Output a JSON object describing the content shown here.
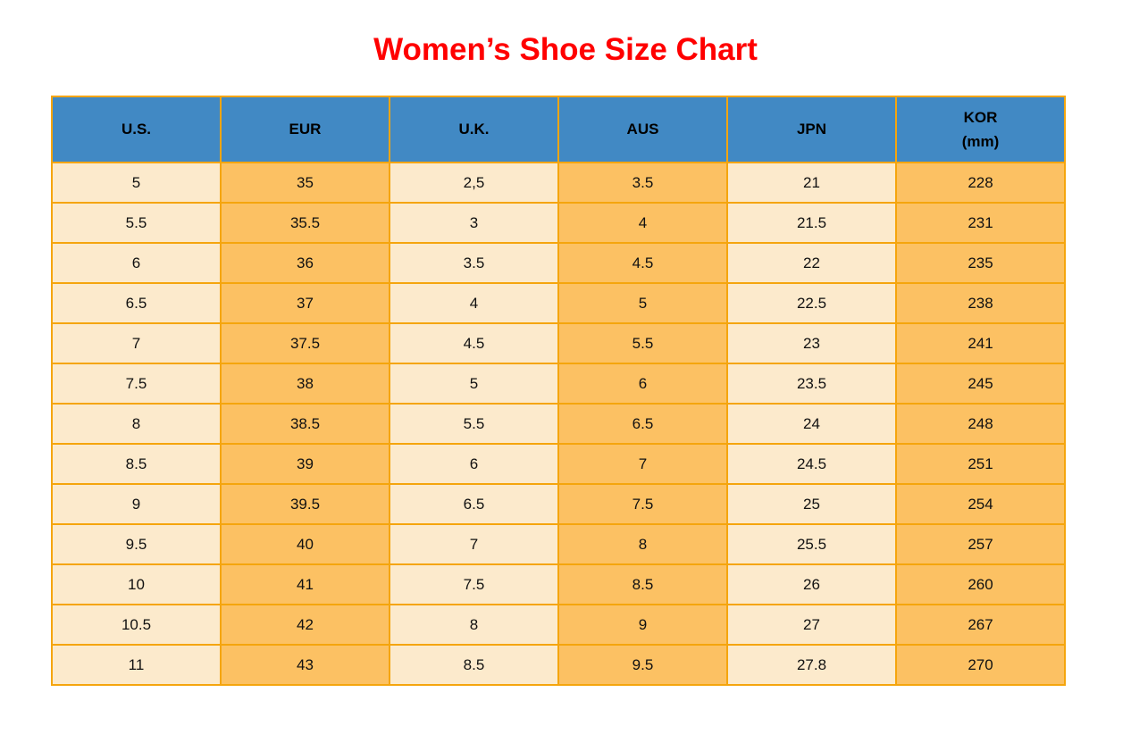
{
  "title": {
    "text": "Women’s Shoe Size Chart"
  },
  "colors": {
    "title_red": "#FF0000",
    "header_blue": "#4189C4",
    "row_light_cream": "#FCEACC",
    "row_orange": "#FCC163",
    "grid_border_orange": "#F5A50D",
    "page_background": "#FFFFFF",
    "text_black": "#111111"
  },
  "table": {
    "header_display": [
      "U.S.",
      "EUR",
      "U.K.",
      "AUS",
      "JPN",
      "KOR\n(mm)"
    ]
  },
  "chart_data": {
    "type": "table",
    "title": "Women’s Shoe Size Chart",
    "columns": [
      "U.S.",
      "EUR",
      "U.K.",
      "AUS",
      "JPN",
      "KOR (mm)"
    ],
    "rows": [
      [
        "5",
        "35",
        "2,5",
        "3.5",
        "21",
        "228"
      ],
      [
        "5.5",
        "35.5",
        "3",
        "4",
        "21.5",
        "231"
      ],
      [
        "6",
        "36",
        "3.5",
        "4.5",
        "22",
        "235"
      ],
      [
        "6.5",
        "37",
        "4",
        "5",
        "22.5",
        "238"
      ],
      [
        "7",
        "37.5",
        "4.5",
        "5.5",
        "23",
        "241"
      ],
      [
        "7.5",
        "38",
        "5",
        "6",
        "23.5",
        "245"
      ],
      [
        "8",
        "38.5",
        "5.5",
        "6.5",
        "24",
        "248"
      ],
      [
        "8.5",
        "39",
        "6",
        "7",
        "24.5",
        "251"
      ],
      [
        "9",
        "39.5",
        "6.5",
        "7.5",
        "25",
        "254"
      ],
      [
        "9.5",
        "40",
        "7",
        "8",
        "25.5",
        "257"
      ],
      [
        "10",
        "41",
        "7.5",
        "8.5",
        "26",
        "260"
      ],
      [
        "10.5",
        "42",
        "8",
        "9",
        "27",
        "267"
      ],
      [
        "11",
        "43",
        "8.5",
        "9.5",
        "27.8",
        "270"
      ]
    ]
  }
}
